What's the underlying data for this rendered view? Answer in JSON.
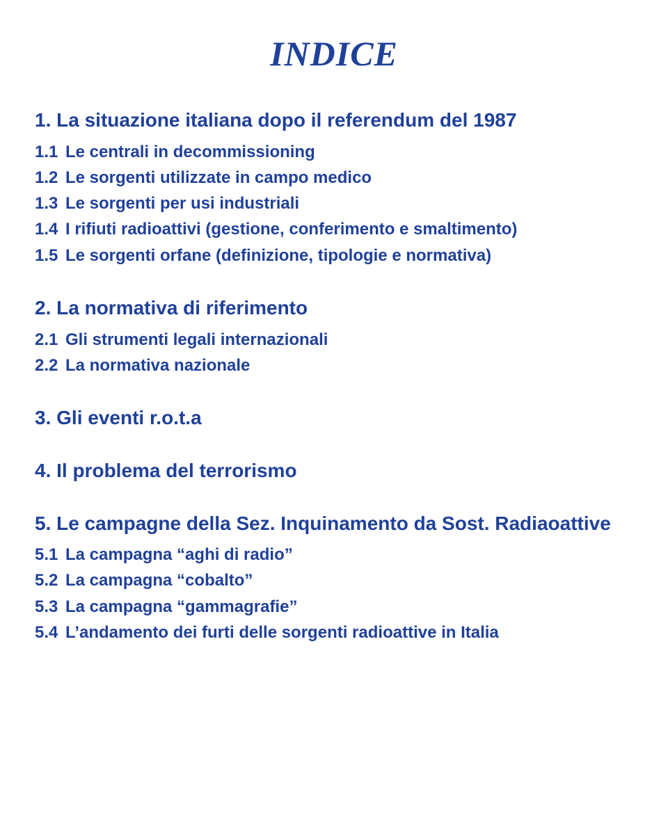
{
  "title": "INDICE",
  "s1": {
    "h": "1. La situazione italiana dopo il referendum del 1987",
    "i1": "Le centrali in decommissioning",
    "i2": "Le sorgenti utilizzate in campo medico",
    "i3": "Le sorgenti per usi industriali",
    "i4": "I rifiuti radioattivi (gestione, conferimento e smaltimento)",
    "i5": "Le sorgenti orfane  (definizione, tipologie e normativa)",
    "n1": "1.1",
    "n2": "1.2",
    "n3": "1.3",
    "n4": "1.4",
    "n5": "1.5"
  },
  "s2": {
    "h": "2. La normativa di riferimento",
    "i1": "Gli strumenti legali internazionali",
    "i2": "La normativa nazionale",
    "n1": "2.1",
    "n2": "2.2"
  },
  "s3": {
    "h": "3. Gli eventi  r.o.t.a"
  },
  "s4": {
    "h": "4. Il problema del terrorismo"
  },
  "s5": {
    "h": "5. Le campagne della Sez. Inquinamento da Sost. Radiaoattive",
    "i1": "La campagna “aghi di radio”",
    "i2": "La campagna “cobalto”",
    "i3": "La campagna “gammagrafie”",
    "i4": "L’andamento dei furti delle sorgenti radioattive in Italia",
    "n1": "5.1",
    "n2": "5.2",
    "n3": "5.3",
    "n4": "5.4"
  }
}
